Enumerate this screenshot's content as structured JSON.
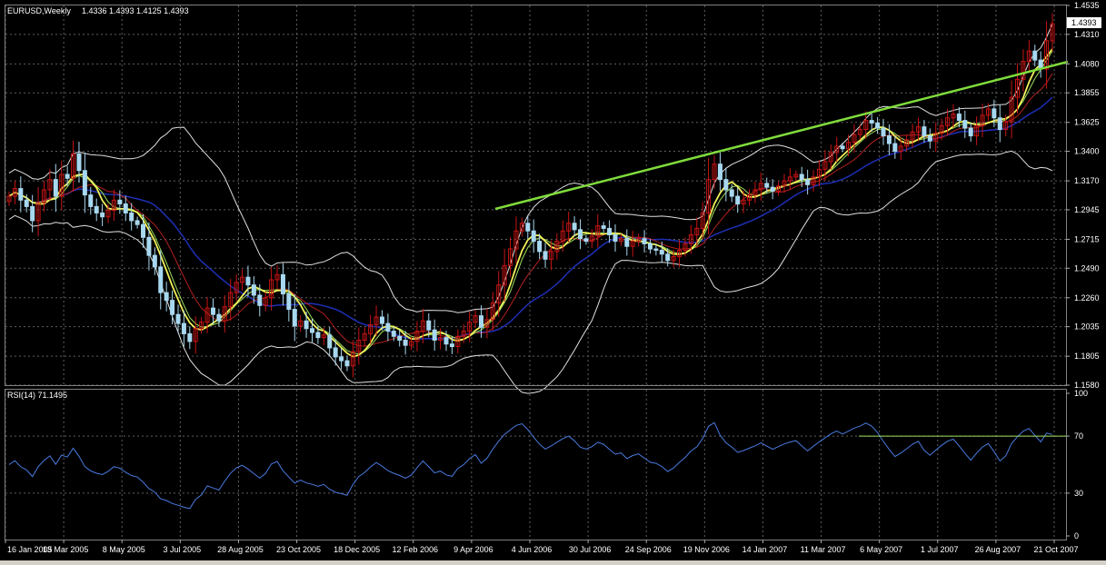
{
  "main_chart": {
    "symbol_label": "EURUSD,Weekly",
    "ohlc_label": "1.4336 1.4393 1.4125 1.4393",
    "current_price_label": "1.4393"
  },
  "rsi_panel": {
    "label": "RSI(14) 71.1495"
  },
  "colors": {
    "background": "#000000",
    "grid": "#5f5f5f",
    "bull_candle": "#c81414",
    "bear_candle": "#a8d8f0",
    "trendline": "#7fdc3c",
    "ma_yellow": "#f2f25a",
    "ma_lime": "#9de05a",
    "ma_red": "#b42020",
    "ma_blue": "#1e2fb4",
    "bollinger": "#e0e0e0",
    "rsi_line": "#4a7ae0",
    "rsi_level_line": "#9de05a",
    "axis_text": "#ffffff"
  },
  "chart_data": [
    {
      "type": "candlestick",
      "title": "EURUSD,Weekly",
      "x_tick_labels": [
        "16 Jan 2005",
        "13 Mar 2005",
        "8 May 2005",
        "3 Jul 2005",
        "28 Aug 2005",
        "23 Oct 2005",
        "18 Dec 2005",
        "12 Feb 2006",
        "9 Apr 2006",
        "4 Jun 2006",
        "30 Jul 2006",
        "24 Sep 2006",
        "19 Nov 2006",
        "14 Jan 2007",
        "11 Mar 2007",
        "6 May 2007",
        "1 Jul 2007",
        "26 Aug 2007",
        "21 Oct 2007"
      ],
      "y_tick_labels": [
        "1.4535",
        "1.4310",
        "1.4080",
        "1.3855",
        "1.3625",
        "1.3400",
        "1.3170",
        "1.2945",
        "1.2715",
        "1.2490",
        "1.2260",
        "1.2035",
        "1.1805",
        "1.1580"
      ],
      "ylim": [
        1.158,
        1.4535
      ],
      "grid": true,
      "close_series_approx": [
        1.305,
        1.311,
        1.302,
        1.297,
        1.286,
        1.3,
        1.31,
        1.318,
        1.305,
        1.322,
        1.319,
        1.338,
        1.325,
        1.306,
        1.297,
        1.292,
        1.289,
        1.294,
        1.302,
        1.299,
        1.292,
        1.286,
        1.283,
        1.273,
        1.259,
        1.25,
        1.23,
        1.224,
        1.213,
        1.206,
        1.198,
        1.192,
        1.202,
        1.207,
        1.218,
        1.213,
        1.208,
        1.219,
        1.23,
        1.238,
        1.242,
        1.236,
        1.228,
        1.22,
        1.226,
        1.24,
        1.244,
        1.229,
        1.217,
        1.204,
        1.208,
        1.202,
        1.199,
        1.195,
        1.197,
        1.187,
        1.18,
        1.177,
        1.173,
        1.184,
        1.193,
        1.198,
        1.205,
        1.211,
        1.206,
        1.2,
        1.196,
        1.193,
        1.189,
        1.192,
        1.2,
        1.208,
        1.201,
        1.193,
        1.195,
        1.19,
        1.188,
        1.196,
        1.2,
        1.207,
        1.212,
        1.203,
        1.209,
        1.222,
        1.236,
        1.251,
        1.264,
        1.278,
        1.284,
        1.278,
        1.27,
        1.262,
        1.256,
        1.262,
        1.27,
        1.278,
        1.284,
        1.279,
        1.272,
        1.27,
        1.274,
        1.282,
        1.28,
        1.275,
        1.27,
        1.272,
        1.266,
        1.27,
        1.272,
        1.268,
        1.264,
        1.263,
        1.26,
        1.255,
        1.258,
        1.263,
        1.268,
        1.275,
        1.28,
        1.292,
        1.318,
        1.33,
        1.318,
        1.31,
        1.305,
        1.299,
        1.302,
        1.306,
        1.31,
        1.315,
        1.312,
        1.309,
        1.313,
        1.317,
        1.32,
        1.322,
        1.318,
        1.314,
        1.32,
        1.326,
        1.332,
        1.339,
        1.344,
        1.342,
        1.347,
        1.353,
        1.357,
        1.364,
        1.362,
        1.358,
        1.352,
        1.346,
        1.34,
        1.344,
        1.349,
        1.355,
        1.359,
        1.352,
        1.348,
        1.354,
        1.36,
        1.366,
        1.369,
        1.364,
        1.358,
        1.352,
        1.36,
        1.368,
        1.373,
        1.366,
        1.357,
        1.363,
        1.382,
        1.396,
        1.41,
        1.418,
        1.411,
        1.404,
        1.426,
        1.4393
      ]
    },
    {
      "type": "line",
      "title": "RSI(14) 71.1495",
      "y_tick_labels": [
        "100",
        "70",
        "30",
        "0"
      ],
      "ylim": [
        0,
        100
      ],
      "level": 70,
      "last_value": 71.1495,
      "grid": true
    }
  ]
}
